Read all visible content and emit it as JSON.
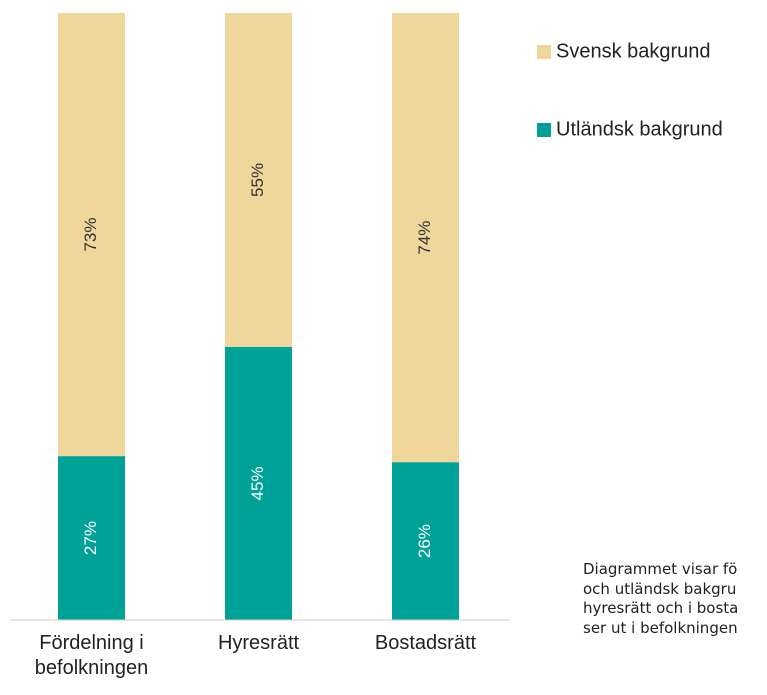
{
  "chart_data": {
    "type": "stacked_bar",
    "categories": [
      "Fördelning i befolkningen",
      "Hyresrätt",
      "Bostadsrätt"
    ],
    "series": [
      {
        "name": "Utländsk bakgrund",
        "color": "#00a298",
        "values": [
          27,
          45,
          26
        ],
        "value_labels": [
          "27%",
          "45%",
          "26%"
        ]
      },
      {
        "name": "Svensk bakgrund",
        "color": "#efd69a",
        "values": [
          73,
          55,
          74
        ],
        "value_labels": [
          "73%",
          "55%",
          "74%"
        ]
      }
    ],
    "ylim": [
      0,
      100
    ],
    "legend": "right",
    "annotation": [
      "Diagrammet visar fö",
      "och utländsk bakgru",
      "hyresrätt och i bosta",
      "ser ut i befolkningen"
    ]
  }
}
